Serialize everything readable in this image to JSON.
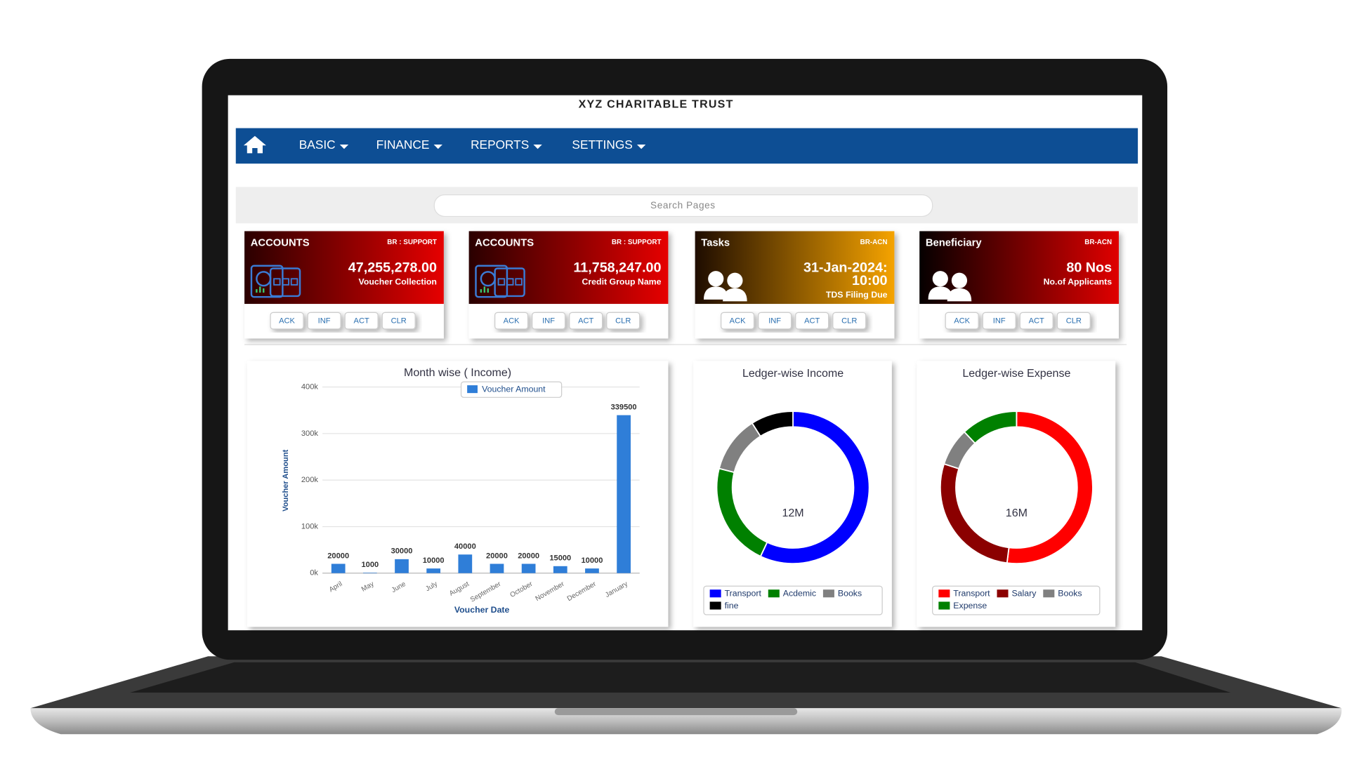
{
  "header": {
    "title": "XYZ CHARITABLE TRUST"
  },
  "nav": {
    "items": [
      "BASIC",
      "FINANCE",
      "REPORTS",
      "SETTINGS"
    ],
    "color": "#0d4e94"
  },
  "search": {
    "placeholder": "Search Pages"
  },
  "cards": [
    {
      "label": "ACCOUNTS",
      "branch": "BR : SUPPORT",
      "value": [
        "47,255,278.00"
      ],
      "subtitle": "Voucher Collection",
      "gradient": [
        "#2a0000",
        "#e60000"
      ],
      "icon": "calculator",
      "buttons": [
        "ACK",
        "INF",
        "ACT",
        "CLR"
      ]
    },
    {
      "label": "ACCOUNTS",
      "branch": "BR : SUPPORT",
      "value": [
        "11,758,247.00"
      ],
      "subtitle": "Credit Group Name",
      "gradient": [
        "#2a0000",
        "#e60000"
      ],
      "icon": "calculator",
      "buttons": [
        "ACK",
        "INF",
        "ACT",
        "CLR"
      ]
    },
    {
      "label": "Tasks",
      "branch": "BR-ACN",
      "value": [
        "31-Jan-2024:",
        "10:00"
      ],
      "subtitle": "TDS Filing Due",
      "gradient": [
        "#1e0c00",
        "#f5a300"
      ],
      "icon": "people",
      "buttons": [
        "ACK",
        "INF",
        "ACT",
        "CLR"
      ]
    },
    {
      "label": "Beneficiary",
      "branch": "BR-ACN",
      "value": [
        "80 Nos"
      ],
      "subtitle": "No.of Applicants",
      "gradient": [
        "#050000",
        "#e00000"
      ],
      "icon": "people",
      "buttons": [
        "ACK",
        "INF",
        "ACT",
        "CLR"
      ]
    }
  ],
  "chart_data": [
    {
      "type": "bar",
      "title": "Month wise ( Income)",
      "categories": [
        "April",
        "May",
        "June",
        "July",
        "August",
        "September",
        "October",
        "November",
        "December",
        "January"
      ],
      "series": [
        {
          "name": "Voucher Amount",
          "color": "#2f7ed8",
          "values": [
            20000,
            1000,
            30000,
            10000,
            40000,
            20000,
            20000,
            15000,
            10000,
            339500
          ]
        }
      ],
      "y_label": "Voucher Amount",
      "x_label": "Voucher Date",
      "ylim": [
        0,
        400000
      ],
      "yticks": [
        {
          "value": 0,
          "label": "0k"
        },
        {
          "value": 100000,
          "label": "100k"
        },
        {
          "value": 200000,
          "label": "200k"
        },
        {
          "value": 300000,
          "label": "300k"
        },
        {
          "value": 400000,
          "label": "400k"
        }
      ],
      "grid": true,
      "legend": "top"
    },
    {
      "type": "pie",
      "title": "Ledger-wise Income",
      "center_label": "12M",
      "categories": [
        "Transport",
        "Acdemic",
        "Books",
        "fine"
      ],
      "values": [
        57,
        22,
        12,
        9
      ],
      "colors": [
        "#0000ff",
        "#008000",
        "#808080",
        "#000000"
      ]
    },
    {
      "type": "pie",
      "title": "Ledger-wise Expense",
      "center_label": "16M",
      "categories": [
        "Transport",
        "Salary",
        "Books",
        "Expense"
      ],
      "values": [
        52,
        28,
        8,
        12
      ],
      "colors": [
        "#ff0000",
        "#8b0000",
        "#808080",
        "#008000"
      ]
    }
  ]
}
